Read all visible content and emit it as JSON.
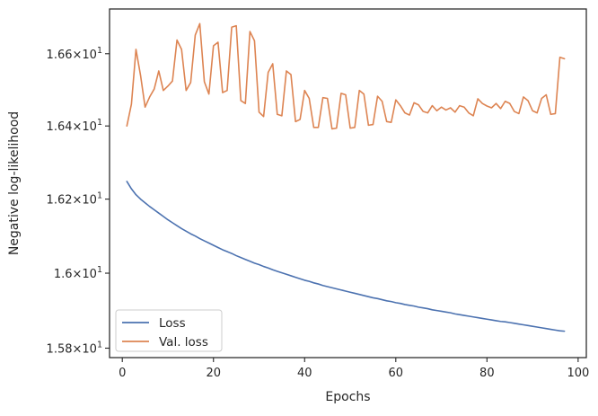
{
  "chart_data": {
    "type": "line",
    "xlabel": "Epochs",
    "ylabel": "Negative log-likelihood",
    "xlim": [
      -2.8,
      101.8
    ],
    "ylim": [
      15.775,
      16.725
    ],
    "ylog": true,
    "grid": false,
    "legend_position": "lower-left",
    "x_ticks": [
      {
        "value": 0,
        "label": "0"
      },
      {
        "value": 20,
        "label": "20"
      },
      {
        "value": 40,
        "label": "40"
      },
      {
        "value": 60,
        "label": "60"
      },
      {
        "value": 80,
        "label": "80"
      },
      {
        "value": 100,
        "label": "100"
      }
    ],
    "y_ticks": [
      {
        "value": 15.8,
        "mantissa": "1.58",
        "base": "10",
        "exp": "1"
      },
      {
        "value": 16.0,
        "mantissa": "1.6",
        "base": "10",
        "exp": "1"
      },
      {
        "value": 16.2,
        "mantissa": "1.62",
        "base": "10",
        "exp": "1"
      },
      {
        "value": 16.4,
        "mantissa": "1.64",
        "base": "10",
        "exp": "1"
      },
      {
        "value": 16.6,
        "mantissa": "1.66",
        "base": "10",
        "exp": "1"
      }
    ],
    "series": [
      {
        "name": "Loss",
        "color": "#4c72b0",
        "x_start": 1,
        "values": [
          16.248,
          16.228,
          16.212,
          16.2,
          16.19,
          16.18,
          16.171,
          16.162,
          16.153,
          16.144,
          16.136,
          16.128,
          16.12,
          16.113,
          16.106,
          16.1,
          16.093,
          16.087,
          16.081,
          16.075,
          16.069,
          16.063,
          16.058,
          16.053,
          16.047,
          16.042,
          16.037,
          16.032,
          16.027,
          16.023,
          16.018,
          16.014,
          16.009,
          16.005,
          16.001,
          15.997,
          15.993,
          15.989,
          15.985,
          15.981,
          15.978,
          15.974,
          15.971,
          15.967,
          15.964,
          15.961,
          15.958,
          15.955,
          15.952,
          15.949,
          15.946,
          15.943,
          15.94,
          15.937,
          15.934,
          15.932,
          15.929,
          15.926,
          15.924,
          15.921,
          15.919,
          15.916,
          15.914,
          15.912,
          15.909,
          15.907,
          15.905,
          15.902,
          15.9,
          15.898,
          15.896,
          15.894,
          15.891,
          15.889,
          15.887,
          15.885,
          15.883,
          15.881,
          15.879,
          15.877,
          15.875,
          15.873,
          15.871,
          15.87,
          15.868,
          15.866,
          15.864,
          15.862,
          15.86,
          15.858,
          15.856,
          15.854,
          15.852,
          15.85,
          15.848,
          15.846,
          15.845
        ]
      },
      {
        "name": "Val. loss",
        "color": "#dd8452",
        "x_start": 1,
        "values": [
          16.4,
          16.46,
          16.612,
          16.54,
          16.452,
          16.48,
          16.502,
          16.552,
          16.498,
          16.51,
          16.524,
          16.638,
          16.612,
          16.498,
          16.52,
          16.652,
          16.684,
          16.522,
          16.488,
          16.622,
          16.632,
          16.492,
          16.498,
          16.674,
          16.678,
          16.47,
          16.462,
          16.662,
          16.636,
          16.438,
          16.426,
          16.548,
          16.572,
          16.432,
          16.428,
          16.552,
          16.542,
          16.412,
          16.418,
          16.498,
          16.476,
          16.396,
          16.396,
          16.478,
          16.476,
          16.392,
          16.394,
          16.49,
          16.486,
          16.394,
          16.396,
          16.498,
          16.488,
          16.402,
          16.404,
          16.482,
          16.468,
          16.412,
          16.41,
          16.472,
          16.456,
          16.436,
          16.43,
          16.464,
          16.458,
          16.44,
          16.436,
          16.456,
          16.442,
          16.452,
          16.444,
          16.45,
          16.438,
          16.456,
          16.452,
          16.436,
          16.428,
          16.475,
          16.462,
          16.455,
          16.45,
          16.462,
          16.448,
          16.468,
          16.462,
          16.44,
          16.434,
          16.48,
          16.47,
          16.442,
          16.436,
          16.476,
          16.486,
          16.432,
          16.434,
          16.59,
          16.586
        ]
      }
    ]
  }
}
